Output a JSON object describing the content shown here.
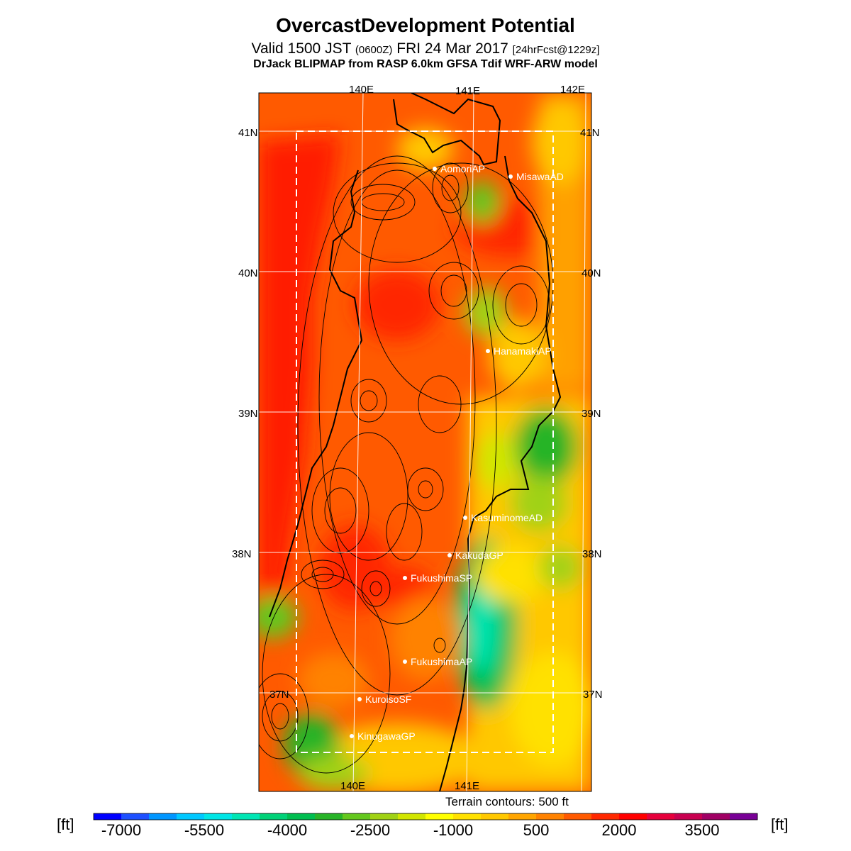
{
  "title": "OvercastDevelopment Potential",
  "subtitle": {
    "main_a": "Valid 1500 JST ",
    "utc": "(0600Z)",
    "main_b": " FRI 24 Mar 2017 ",
    "fcst": "[24hrFcst@1229z]"
  },
  "source_line": "DrJack BLIPMAP from RASP 6.0km GFSA Tdif WRF-ARW model",
  "map": {
    "longitude_labels_top": [
      "140E",
      "141E",
      "142E"
    ],
    "longitude_labels_bottom": [
      "140E",
      "141E"
    ],
    "latitude_labels_left": [
      "41N",
      "40N",
      "39N",
      "38N",
      "37N"
    ],
    "latitude_labels_right": [
      "41N",
      "40N",
      "39N",
      "38N",
      "37N"
    ],
    "stations": [
      {
        "name": "AomoriAP"
      },
      {
        "name": "MisawaAD"
      },
      {
        "name": "HanamakiAP"
      },
      {
        "name": "KasuminomeAD"
      },
      {
        "name": "KakudaGP"
      },
      {
        "name": "FukushimaSP"
      },
      {
        "name": "FukushimaAP"
      },
      {
        "name": "KuroisoSF"
      },
      {
        "name": "KinugawaGP"
      }
    ]
  },
  "terrain_note": "Terrain contours: 500 ft",
  "colorbar": {
    "unit_left": "[ft]",
    "unit_right": "[ft]",
    "tick_labels": [
      "-7000",
      "-5500",
      "-4000",
      "-2500",
      "-1000",
      "500",
      "2000",
      "3500"
    ],
    "colors": [
      "#0000ff",
      "#1e50ff",
      "#0096ff",
      "#00c8ff",
      "#00e6e6",
      "#00e6b4",
      "#00d278",
      "#00be50",
      "#28b428",
      "#64c81e",
      "#a0d214",
      "#d2e600",
      "#ffff00",
      "#ffe100",
      "#ffc800",
      "#ffa500",
      "#ff8200",
      "#ff5a00",
      "#ff2800",
      "#ff0000",
      "#e6003c",
      "#c80050",
      "#a00064",
      "#780096"
    ]
  }
}
